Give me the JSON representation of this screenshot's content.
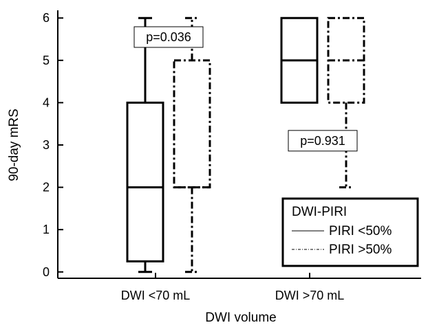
{
  "chart_data": {
    "type": "boxplot",
    "xlabel": "DWI volume",
    "ylabel": "90-day mRS",
    "ylim": [
      -0.15,
      6.15
    ],
    "yticks": [
      0,
      1,
      2,
      3,
      4,
      5,
      6
    ],
    "categories": [
      "DWI <70 mL",
      "DWI >70 mL"
    ],
    "series": [
      {
        "name": "PIRI <50%",
        "style": "solid",
        "boxes": [
          {
            "whisker_low": 0,
            "q1": 0.25,
            "median": 2,
            "q3": 4,
            "whisker_high": 6
          },
          {
            "whisker_low": 4,
            "q1": 4,
            "median": 5,
            "q3": 6,
            "whisker_high": 6
          }
        ]
      },
      {
        "name": "PIRI >50%",
        "style": "dashdot",
        "boxes": [
          {
            "whisker_low": 0,
            "q1": 2,
            "median": 2,
            "q3": 5,
            "whisker_high": 6
          },
          {
            "whisker_low": 2,
            "q1": 4,
            "median": 5,
            "q3": 6,
            "whisker_high": 6
          }
        ]
      }
    ],
    "annotations": [
      {
        "text": "p=0.036",
        "category": 0,
        "y": 5.55
      },
      {
        "text": "p=0.931",
        "category": 1,
        "y": 3.1
      }
    ],
    "legend": {
      "title": "DWI-PIRI",
      "position": "bottom-right"
    },
    "grid": false
  }
}
